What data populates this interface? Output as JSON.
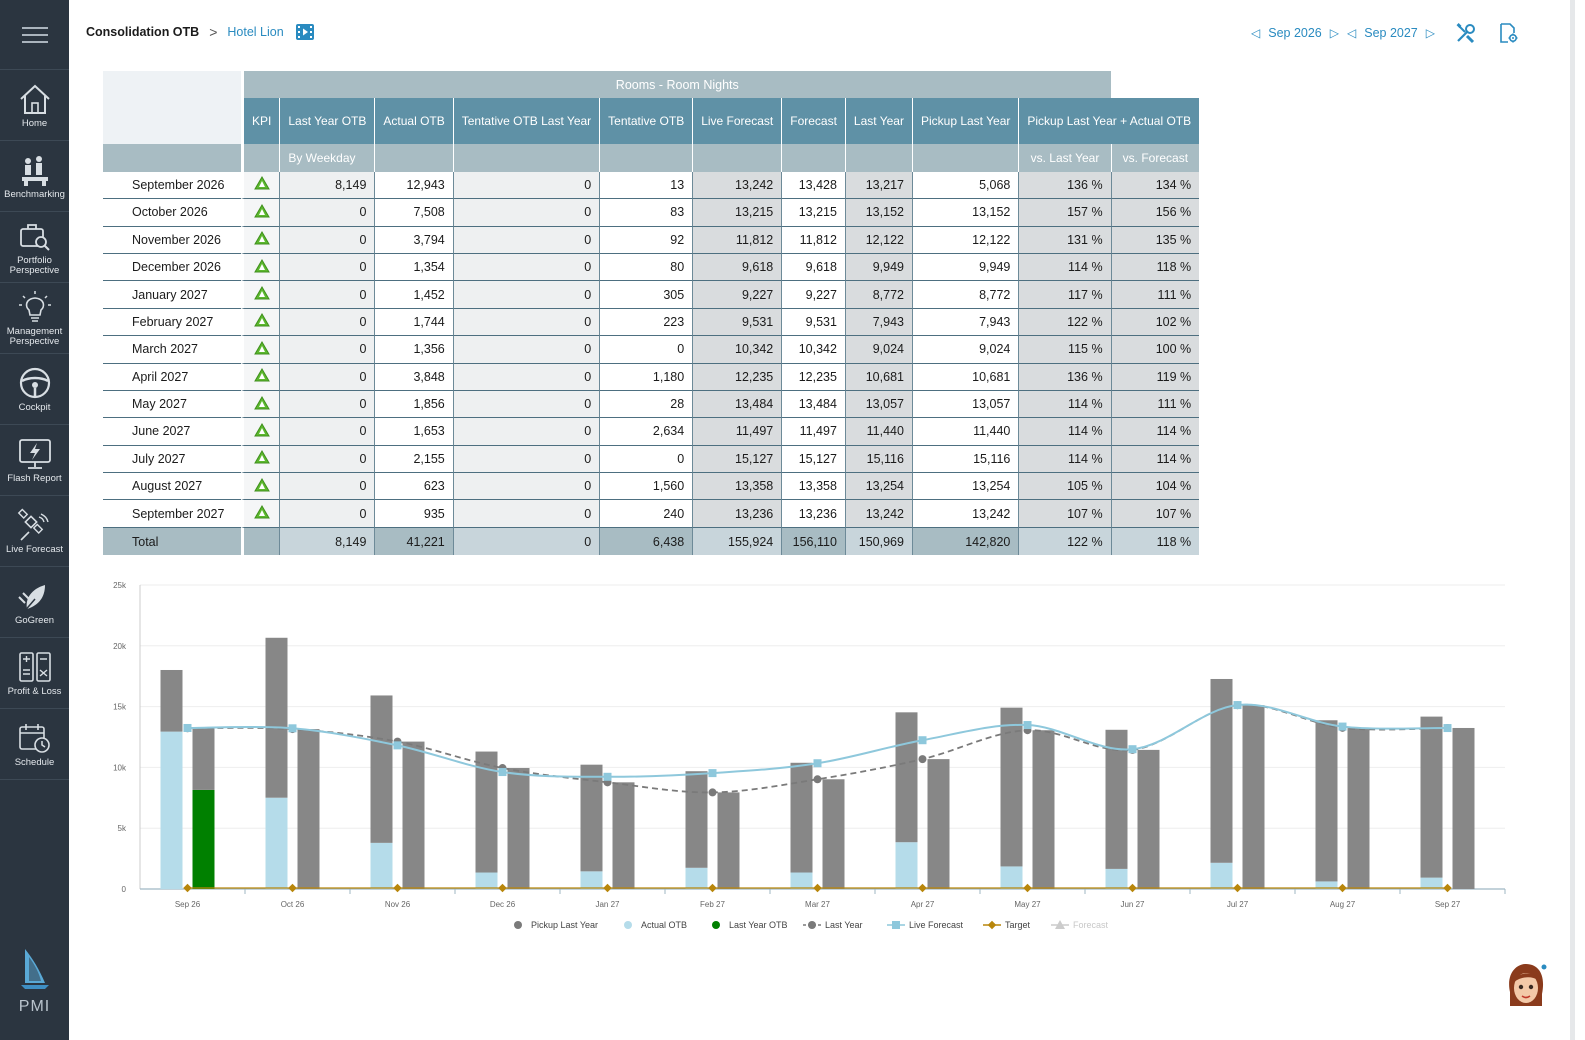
{
  "sidebar": {
    "items": [
      {
        "label": "Home",
        "icon": "home-icon"
      },
      {
        "label": "Benchmarking",
        "icon": "benchmark-people-icon"
      },
      {
        "label": "Portfolio Perspective",
        "icon": "briefcase-search-icon"
      },
      {
        "label": "Management Perspective",
        "icon": "lightbulb-icon"
      },
      {
        "label": "Cockpit",
        "icon": "steering-wheel-icon"
      },
      {
        "label": "Flash Report",
        "icon": "flash-monitor-icon"
      },
      {
        "label": "Live Forecast",
        "icon": "satellite-icon"
      },
      {
        "label": "GoGreen",
        "icon": "plug-leaf-icon"
      },
      {
        "label": "Profit & Loss",
        "icon": "calculator-icon"
      },
      {
        "label": "Schedule",
        "icon": "calendar-clock-icon"
      }
    ],
    "logo_text": "PMI"
  },
  "header": {
    "breadcrumb_root": "Consolidation OTB",
    "breadcrumb_sep": ">",
    "breadcrumb_hotel": "Hotel Lion",
    "date_from": "Sep 2026",
    "date_to": "Sep 2027"
  },
  "table": {
    "group_title": "Rooms - Room Nights",
    "columns": [
      "KPI",
      "Last Year OTB",
      "Actual OTB",
      "Tentative OTB Last Year",
      "Tentative OTB",
      "Live Forecast",
      "Forecast",
      "Last Year",
      "Pickup Last Year",
      "Pickup Last Year + Actual OTB"
    ],
    "sub_headers": {
      "by_weekday": "By Weekday",
      "vs_last_year": "vs. Last Year",
      "vs_forecast": "vs. Forecast"
    },
    "rows": [
      {
        "month": "September 2026",
        "values": [
          "8,149",
          "12,943",
          "0",
          "13",
          "13,242",
          "13,428",
          "13,217",
          "5,068",
          "136 %",
          "134 %"
        ]
      },
      {
        "month": "October 2026",
        "values": [
          "0",
          "7,508",
          "0",
          "83",
          "13,215",
          "13,215",
          "13,152",
          "13,152",
          "157 %",
          "156 %"
        ]
      },
      {
        "month": "November 2026",
        "values": [
          "0",
          "3,794",
          "0",
          "92",
          "11,812",
          "11,812",
          "12,122",
          "12,122",
          "131 %",
          "135 %"
        ]
      },
      {
        "month": "December 2026",
        "values": [
          "0",
          "1,354",
          "0",
          "80",
          "9,618",
          "9,618",
          "9,949",
          "9,949",
          "114 %",
          "118 %"
        ]
      },
      {
        "month": "January 2027",
        "values": [
          "0",
          "1,452",
          "0",
          "305",
          "9,227",
          "9,227",
          "8,772",
          "8,772",
          "117 %",
          "111 %"
        ]
      },
      {
        "month": "February 2027",
        "values": [
          "0",
          "1,744",
          "0",
          "223",
          "9,531",
          "9,531",
          "7,943",
          "7,943",
          "122 %",
          "102 %"
        ]
      },
      {
        "month": "March 2027",
        "values": [
          "0",
          "1,356",
          "0",
          "0",
          "10,342",
          "10,342",
          "9,024",
          "9,024",
          "115 %",
          "100 %"
        ]
      },
      {
        "month": "April 2027",
        "values": [
          "0",
          "3,848",
          "0",
          "1,180",
          "12,235",
          "12,235",
          "10,681",
          "10,681",
          "136 %",
          "119 %"
        ]
      },
      {
        "month": "May 2027",
        "values": [
          "0",
          "1,856",
          "0",
          "28",
          "13,484",
          "13,484",
          "13,057",
          "13,057",
          "114 %",
          "111 %"
        ]
      },
      {
        "month": "June 2027",
        "values": [
          "0",
          "1,653",
          "0",
          "2,634",
          "11,497",
          "11,497",
          "11,440",
          "11,440",
          "114 %",
          "114 %"
        ]
      },
      {
        "month": "July 2027",
        "values": [
          "0",
          "2,155",
          "0",
          "0",
          "15,127",
          "15,127",
          "15,116",
          "15,116",
          "114 %",
          "114 %"
        ]
      },
      {
        "month": "August 2027",
        "values": [
          "0",
          "623",
          "0",
          "1,560",
          "13,358",
          "13,358",
          "13,254",
          "13,254",
          "105 %",
          "104 %"
        ]
      },
      {
        "month": "September 2027",
        "values": [
          "0",
          "935",
          "0",
          "240",
          "13,236",
          "13,236",
          "13,242",
          "13,242",
          "107 %",
          "107 %"
        ]
      }
    ],
    "total": {
      "label": "Total",
      "values": [
        "8,149",
        "41,221",
        "0",
        "6,438",
        "155,924",
        "156,110",
        "150,969",
        "142,820",
        "122 %",
        "118 %"
      ]
    }
  },
  "chart_data": {
    "type": "bar",
    "categories": [
      "Sep 26",
      "Oct 26",
      "Nov 26",
      "Dec 26",
      "Jan 27",
      "Feb 27",
      "Mar 27",
      "Apr 27",
      "May 27",
      "Jun 27",
      "Jul 27",
      "Aug 27",
      "Sep 27"
    ],
    "ylim": [
      0,
      25000
    ],
    "yticks": [
      "0",
      "5k",
      "10k",
      "15k",
      "20k",
      "25k"
    ],
    "series": [
      {
        "name": "Pickup Last Year",
        "kind": "stacked-bar",
        "color": "#878787",
        "values": [
          5068,
          13152,
          12122,
          9949,
          8772,
          7943,
          9024,
          10681,
          13057,
          11440,
          15116,
          13254,
          13242
        ]
      },
      {
        "name": "Actual OTB",
        "kind": "stacked-bar",
        "color": "#b5dcea",
        "values": [
          12943,
          7508,
          3794,
          1354,
          1452,
          1744,
          1356,
          3848,
          1856,
          1653,
          2155,
          623,
          935
        ]
      },
      {
        "name": "Last Year OTB",
        "kind": "stacked-bar",
        "color": "#008000",
        "values": [
          8149,
          0,
          0,
          0,
          0,
          0,
          0,
          0,
          0,
          0,
          0,
          0,
          0
        ]
      },
      {
        "name": "Last Year",
        "kind": "dashed-line",
        "color": "#878787",
        "values": [
          13217,
          13152,
          12122,
          9949,
          8772,
          7943,
          9024,
          10681,
          13057,
          11440,
          15116,
          13254,
          13242
        ]
      },
      {
        "name": "Live Forecast",
        "kind": "line",
        "color": "#8ec8dc",
        "values": [
          13242,
          13215,
          11812,
          9618,
          9227,
          9531,
          10342,
          12235,
          13484,
          11497,
          15127,
          13358,
          13236
        ]
      },
      {
        "name": "Target",
        "kind": "line",
        "color": "#b8860b",
        "values": [
          0,
          0,
          0,
          0,
          0,
          0,
          0,
          0,
          0,
          0,
          0,
          0,
          0
        ]
      },
      {
        "name": "Forecast",
        "kind": "line",
        "color": "#cccccc",
        "hidden": true,
        "values": [
          13428,
          13215,
          11812,
          9618,
          9227,
          9531,
          10342,
          12235,
          13484,
          11497,
          15127,
          13358,
          13236
        ]
      }
    ],
    "legend_position": "bottom",
    "grid": true
  }
}
